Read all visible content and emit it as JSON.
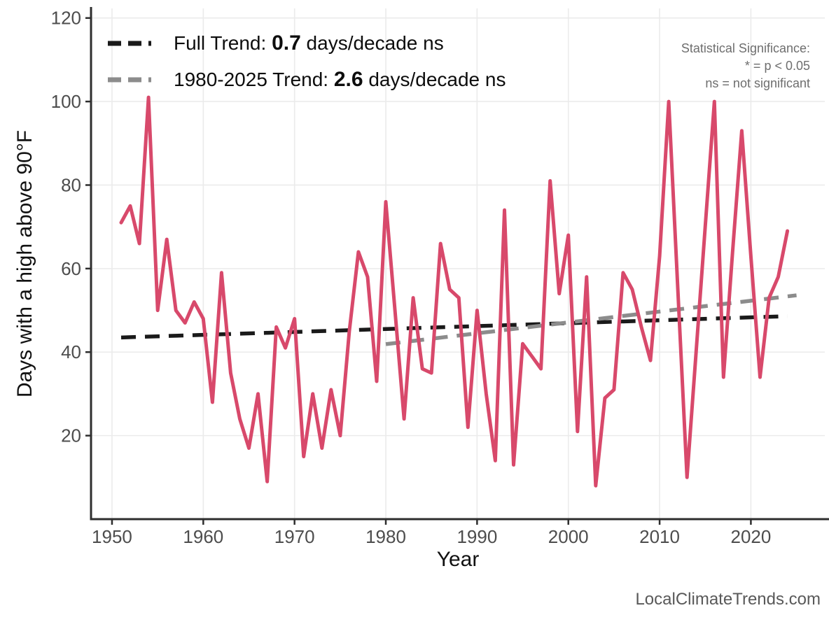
{
  "colors": {
    "series_red": "#d8496b",
    "full_trend_black": "#1a1a1a",
    "recent_trend_gray": "#8c8c8c",
    "gridline": "#ebebeb",
    "axis_line": "#2e2e2e",
    "tick_label": "#4d4d4d",
    "note_gray": "#6e6e6e",
    "footer_gray": "#595959"
  },
  "legend": {
    "items": [
      {
        "name": "full-trend",
        "prefix": "Full Trend: ",
        "value": "0.7",
        "suffix": " days/decade ns",
        "color": "#1a1a1a"
      },
      {
        "name": "recent-trend",
        "prefix": "1980-2025 Trend: ",
        "value": "2.6",
        "suffix": " days/decade ns",
        "color": "#8c8c8c"
      }
    ]
  },
  "stat_note": {
    "line1": "Statistical Significance:",
    "line2": "* = p < 0.05",
    "line3": "ns = not significant"
  },
  "footer": {
    "text": "LocalClimateTrends.com"
  },
  "chart_data": {
    "type": "line",
    "title": "",
    "xlabel": "Year",
    "ylabel": "Days with a high above 90°F",
    "xticks": [
      1950,
      1960,
      1970,
      1980,
      1990,
      2000,
      2010,
      2020
    ],
    "yticks": [
      20,
      40,
      60,
      80,
      100,
      120
    ],
    "xlim": [
      1947.7,
      2028.1
    ],
    "ylim": [
      0,
      122.3
    ],
    "grid": true,
    "legend_position": "top-left",
    "series": [
      {
        "name": "days-above-90F",
        "color": "#d8496b",
        "years": [
          1951,
          1952,
          1953,
          1954,
          1955,
          1956,
          1957,
          1958,
          1959,
          1960,
          1961,
          1962,
          1963,
          1964,
          1965,
          1966,
          1967,
          1968,
          1969,
          1970,
          1971,
          1972,
          1973,
          1974,
          1975,
          1976,
          1977,
          1978,
          1979,
          1980,
          1981,
          1982,
          1983,
          1984,
          1985,
          1986,
          1987,
          1988,
          1989,
          1990,
          1991,
          1992,
          1993,
          1994,
          1995,
          1996,
          1997,
          1998,
          1999,
          2000,
          2001,
          2002,
          2003,
          2004,
          2005,
          2006,
          2007,
          2008,
          2009,
          2010,
          2011,
          2012,
          2013,
          2014,
          2015,
          2016,
          2017,
          2018,
          2019,
          2020,
          2021,
          2022,
          2023,
          2024
        ],
        "values": [
          71,
          75,
          66,
          101,
          50,
          67,
          50,
          47,
          52,
          48,
          28,
          59,
          35,
          24,
          17,
          30,
          9,
          46,
          41,
          48,
          15,
          30,
          17,
          31,
          20,
          45,
          64,
          58,
          33,
          76,
          50,
          24,
          53,
          36,
          35,
          66,
          55,
          53,
          22,
          50,
          30,
          14,
          74,
          13,
          42,
          39,
          36,
          81,
          54,
          68,
          21,
          58,
          8,
          29,
          31,
          59,
          55,
          46,
          38,
          63,
          100,
          55,
          10,
          40,
          70,
          100,
          34,
          64,
          93,
          63,
          34,
          53,
          58,
          69
        ]
      }
    ],
    "trend_lines": [
      {
        "name": "Full Trend",
        "slope_days_per_decade": 0.7,
        "significance": "ns",
        "color": "#1a1a1a",
        "dashed": true,
        "start": {
          "year": 1951,
          "value": 43.5
        },
        "end": {
          "year": 2024,
          "value": 48.6
        }
      },
      {
        "name": "1980-2025 Trend",
        "slope_days_per_decade": 2.6,
        "significance": "ns",
        "color": "#8c8c8c",
        "dashed": true,
        "start": {
          "year": 1980,
          "value": 41.9
        },
        "end": {
          "year": 2025,
          "value": 53.6
        }
      }
    ]
  }
}
